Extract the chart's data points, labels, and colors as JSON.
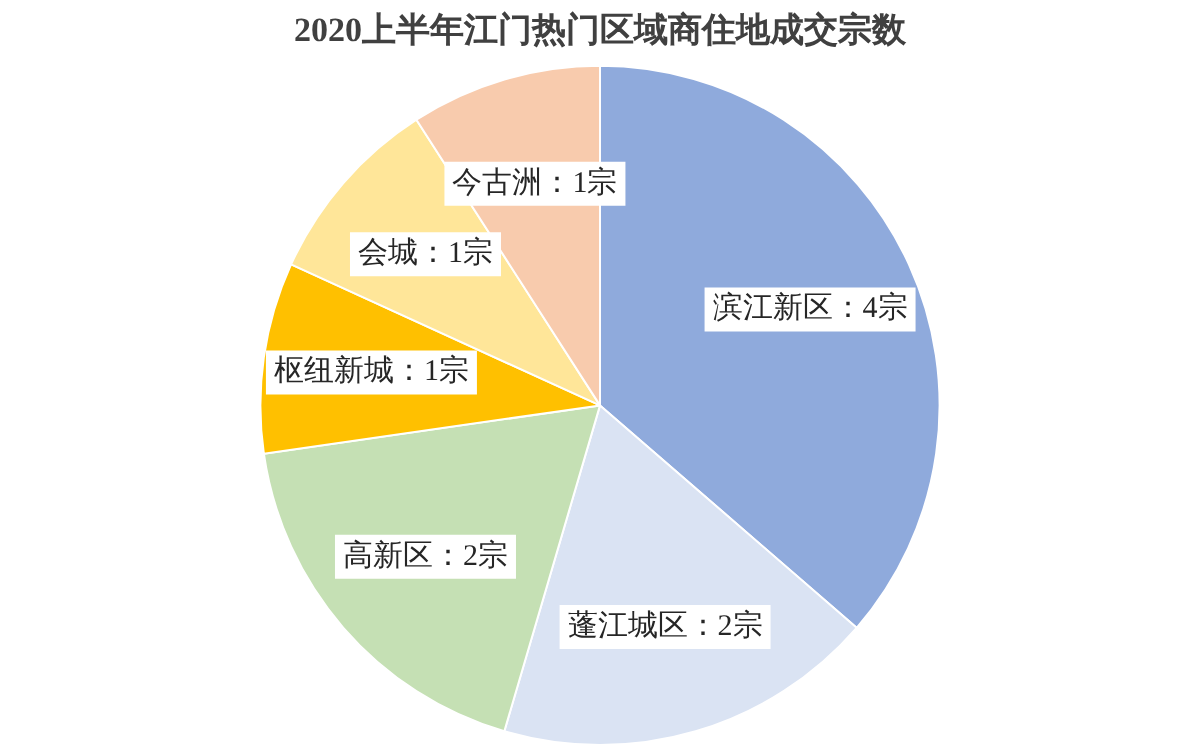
{
  "chart_data": {
    "type": "pie",
    "title": "2020上半年江门热门区域商住地成交宗数",
    "categories": [
      "滨江新区",
      "蓬江城区",
      "高新区",
      "枢纽新城",
      "会城",
      "今古洲"
    ],
    "values": [
      4,
      2,
      2,
      1,
      1,
      1
    ],
    "colors": [
      "#8faadc",
      "#dae3f3",
      "#c5e0b4",
      "#ffc000",
      "#ffe699",
      "#f8cbad"
    ],
    "value_labels": [
      "：4宗",
      "：2宗",
      "：2宗",
      "：1宗",
      "：1宗",
      "：1宗"
    ],
    "legend": false
  }
}
